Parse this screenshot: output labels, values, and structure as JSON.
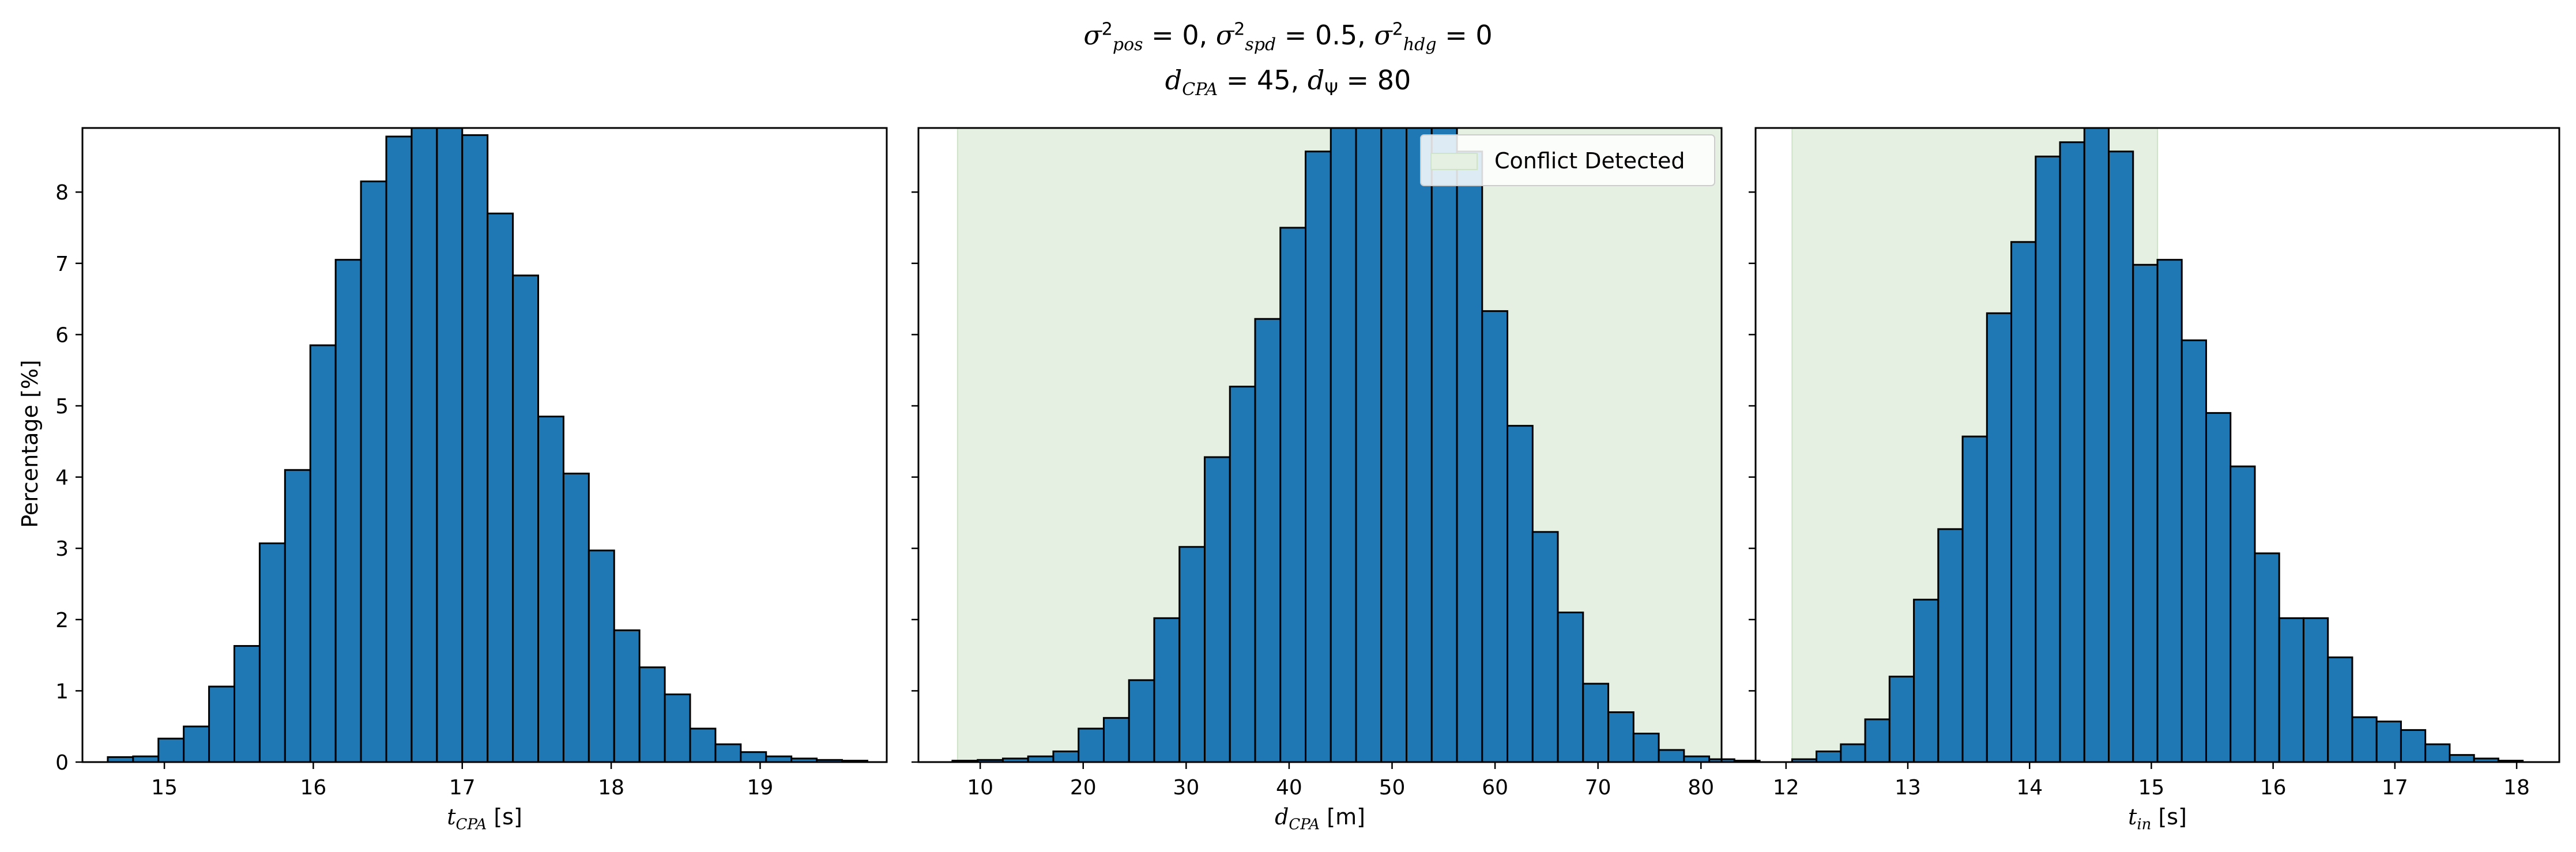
{
  "figure_title": {
    "line1": "σ²pos = 0, σ²spd = 0.5, σ²hdg = 0",
    "line2": "dCPA = 45, dΨ = 80"
  },
  "colors": {
    "bar_fill": "#1f77b4",
    "bar_edge": "#000000",
    "conflict_fill": "#e5f0e2",
    "conflict_edge": "#cfe3c9"
  },
  "chart_data": [
    {
      "type": "bar",
      "ylabel": "Percentage [%]",
      "xlabel": "t_CPA [s]",
      "xlim": [
        14.45,
        19.85
      ],
      "ylim": [
        0,
        8.9
      ],
      "xticks": [
        15,
        16,
        17,
        18,
        19
      ],
      "yticks": [
        0,
        1,
        2,
        3,
        4,
        5,
        6,
        7,
        8
      ],
      "bin_width": 0.17,
      "bin_start": 14.62,
      "values": [
        0.07,
        0.08,
        0.33,
        0.5,
        1.06,
        1.63,
        3.07,
        4.1,
        5.85,
        7.05,
        8.15,
        8.78,
        8.95,
        8.95,
        8.8,
        7.7,
        6.83,
        4.85,
        4.05,
        2.97,
        1.85,
        1.33,
        0.95,
        0.47,
        0.25,
        0.14,
        0.08,
        0.05,
        0.03,
        0.02
      ],
      "shaded_region": null,
      "legend": null
    },
    {
      "type": "bar",
      "ylabel": "",
      "xlabel": "d_CPA [m]",
      "xlim": [
        4.0,
        82.0
      ],
      "ylim": [
        0,
        8.9
      ],
      "xticks": [
        10,
        20,
        30,
        40,
        50,
        60,
        70,
        80
      ],
      "yticks": [
        0,
        1,
        2,
        3,
        4,
        5,
        6,
        7,
        8
      ],
      "bin_width": 2.45,
      "bin_start": 7.3,
      "values": [
        0.02,
        0.03,
        0.05,
        0.08,
        0.15,
        0.47,
        0.62,
        1.15,
        2.02,
        3.02,
        4.28,
        5.27,
        6.22,
        7.5,
        8.57,
        8.9,
        8.9,
        8.9,
        8.9,
        8.9,
        8.57,
        6.33,
        4.72,
        3.23,
        2.1,
        1.1,
        0.7,
        0.4,
        0.17,
        0.08,
        0.04,
        0.02
      ],
      "shaded_region": {
        "x_start": 7.8,
        "x_end": 82.0
      },
      "legend": {
        "label": "Conflict Detected",
        "position": "upper right"
      }
    },
    {
      "type": "bar",
      "ylabel": "",
      "xlabel": "t_in [s]",
      "xlim": [
        11.75,
        18.35
      ],
      "ylim": [
        0,
        8.9
      ],
      "xticks": [
        12,
        13,
        14,
        15,
        16,
        17,
        18
      ],
      "yticks": [
        0,
        1,
        2,
        3,
        4,
        5,
        6,
        7,
        8
      ],
      "bin_width": 0.2,
      "bin_start": 12.05,
      "values": [
        0.04,
        0.15,
        0.25,
        0.6,
        1.2,
        2.28,
        3.27,
        4.57,
        6.3,
        7.3,
        8.5,
        8.7,
        8.9,
        8.57,
        6.98,
        7.05,
        5.92,
        4.9,
        4.15,
        2.93,
        2.02,
        2.02,
        1.47,
        0.63,
        0.57,
        0.45,
        0.25,
        0.1,
        0.05,
        0.02
      ],
      "shaded_region": {
        "x_start": 12.05,
        "x_end": 15.05
      },
      "legend": null
    }
  ]
}
